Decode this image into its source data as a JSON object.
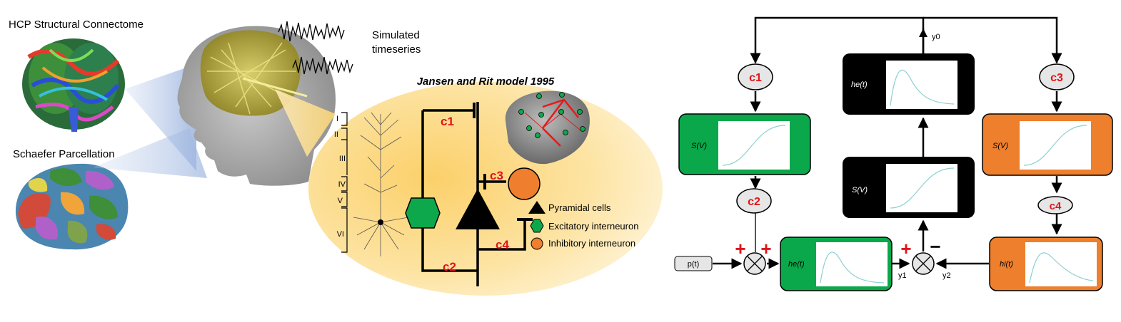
{
  "left": {
    "hcp_title": "HCP Structural Connectome",
    "schaefer_title": "Schaefer Parcellation",
    "sim_line1": "Simulated",
    "sim_line2": "timeseries"
  },
  "jansen_rit": {
    "title": "Jansen and Rit model 1995",
    "layers": [
      "I",
      "II",
      "III",
      "IV",
      "V",
      "VI"
    ],
    "conn": [
      "c1",
      "c2",
      "c3",
      "c4"
    ],
    "legend": [
      "Pyramidal cells",
      "Excitatory interneuron",
      "Inhibitory interneuron"
    ]
  },
  "block": {
    "c1": "c1",
    "c2": "c2",
    "c3": "c3",
    "c4": "c4",
    "sv": "S(V)",
    "he": "he(t)",
    "hi": "hi(t)",
    "pt": "p(t)",
    "y0": "y0",
    "y1": "y1",
    "y2": "y2",
    "plus": "+",
    "minus": "−"
  },
  "colors": {
    "green": "#0aa84a",
    "orange": "#ee7f2d",
    "black": "#000000",
    "red": "#e0141a",
    "yellow_bg": "#fbd77a"
  }
}
